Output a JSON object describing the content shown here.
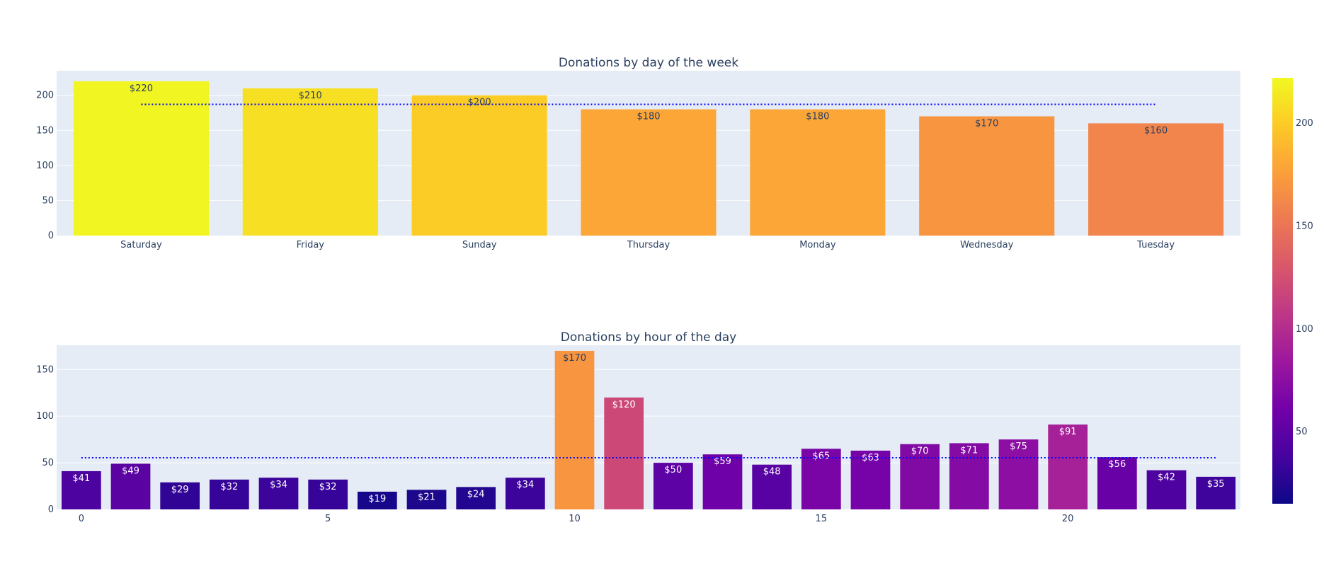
{
  "chart_data": [
    {
      "type": "bar",
      "title": "Donations by day of the week",
      "categories": [
        "Saturday",
        "Friday",
        "Sunday",
        "Thursday",
        "Monday",
        "Wednesday",
        "Tuesday"
      ],
      "values": [
        220,
        210,
        200,
        180,
        180,
        170,
        160
      ],
      "labels": [
        "$220",
        "$210",
        "$200",
        "$180",
        "$180",
        "$170",
        "$160"
      ],
      "ylim": [
        0,
        235
      ],
      "yticks": [
        0,
        50,
        100,
        150,
        200
      ],
      "mean_line": 187.1,
      "grid": true
    },
    {
      "type": "bar",
      "title": "Donations by hour of the day",
      "x": [
        0,
        1,
        2,
        3,
        4,
        5,
        6,
        7,
        8,
        9,
        10,
        11,
        12,
        13,
        14,
        15,
        16,
        17,
        18,
        19,
        20,
        21,
        22,
        23
      ],
      "values": [
        41,
        49,
        29,
        32,
        34,
        32,
        19,
        21,
        24,
        34,
        170,
        120,
        50,
        59,
        48,
        65,
        63,
        70,
        71,
        75,
        91,
        56,
        42,
        35
      ],
      "labels": [
        "$41",
        "$49",
        "$29",
        "$32",
        "$34",
        "$32",
        "$19",
        "$21",
        "$24",
        "$34",
        "$170",
        "$120",
        "$50",
        "$59",
        "$48",
        "$65",
        "$63",
        "$70",
        "$71",
        "$75",
        "$91",
        "$56",
        "$42",
        "$35"
      ],
      "ylim": [
        0,
        176
      ],
      "yticks": [
        0,
        50,
        100,
        150
      ],
      "xticks": [
        0,
        5,
        10,
        15,
        20
      ],
      "mean_line": 55.4,
      "grid": true
    }
  ],
  "colorbar": {
    "range": [
      15,
      222
    ],
    "ticks": [
      50,
      100,
      150,
      200
    ],
    "colorscale": [
      "#0d0887",
      "#46039f",
      "#7201a8",
      "#9c179e",
      "#bd3786",
      "#d8576b",
      "#ed7953",
      "#fb9f3a",
      "#fdca26",
      "#f0f921"
    ]
  },
  "colors": {
    "plot_bg": "#e5ecf6",
    "grid": "#ffffff",
    "text": "#2a3f5f",
    "mean_line": "#0000ff"
  }
}
